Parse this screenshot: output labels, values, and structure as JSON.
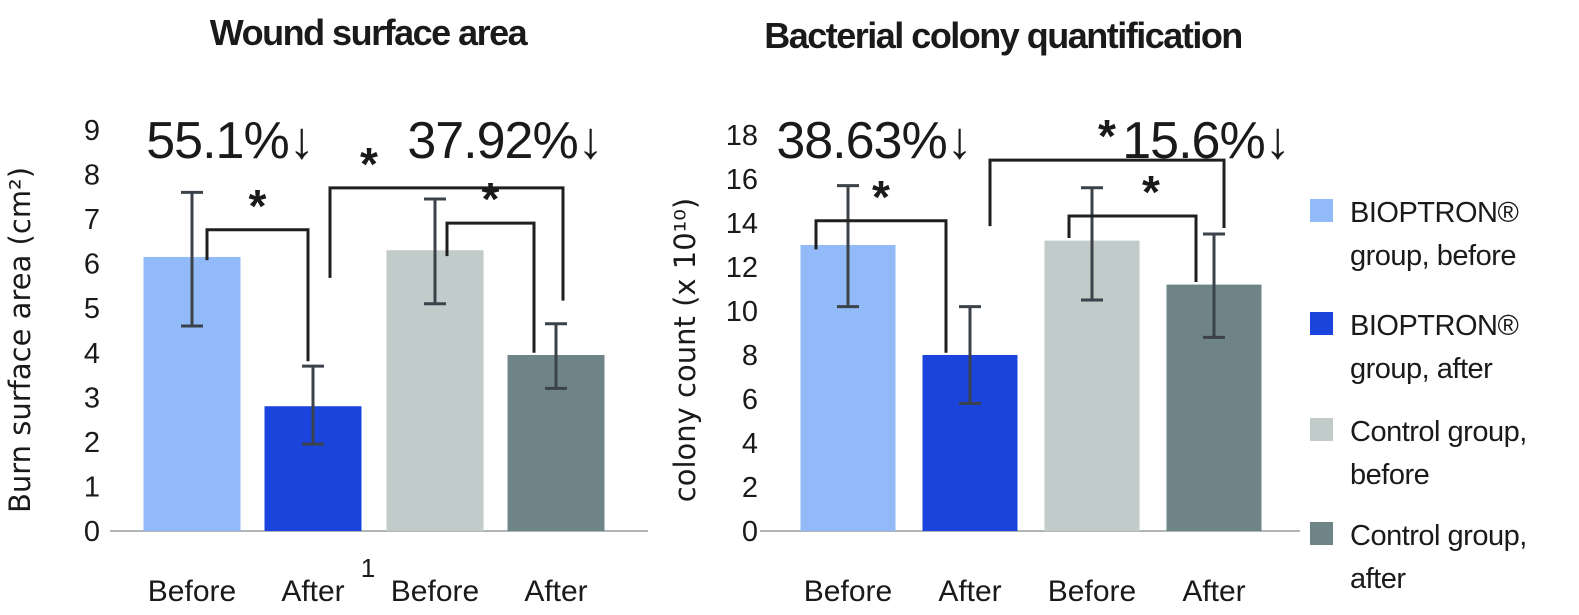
{
  "colors": {
    "bioptron_before": "#92b9f8",
    "bioptron_after": "#1b44dd",
    "control_before": "#c0cbca",
    "control_after": "#6f8487",
    "error_bar": "#3b424a",
    "bracket": "#1f1f1d",
    "axis_line": "#b0b5b5",
    "text": "#1a1a1a"
  },
  "legend": {
    "items": [
      {
        "lines": [
          "BIOPTRON®",
          "group, before"
        ],
        "color": "#92b9f8"
      },
      {
        "lines": [
          "BIOPTRON®",
          "group, after"
        ],
        "color": "#1b44dd"
      },
      {
        "lines": [
          "Control group,",
          "before"
        ],
        "color": "#c0cbca"
      },
      {
        "lines": [
          "Control group,",
          "after"
        ],
        "color": "#6f8487"
      }
    ]
  },
  "chart_data": [
    {
      "type": "bar",
      "title": "Wound surface area",
      "ylabel": "Burn surface area (cm²)",
      "xlabel": "",
      "ylim": [
        0,
        9
      ],
      "yticks": [
        0,
        1,
        2,
        3,
        4,
        5,
        6,
        7,
        8,
        9
      ],
      "grid": false,
      "categories": [
        "Before",
        "After",
        "Before",
        "After"
      ],
      "series": [
        {
          "name": "BIOPTRON® group, before",
          "value": 6.15,
          "err_low": 4.6,
          "err_high": 7.6,
          "color": "#92b9f8"
        },
        {
          "name": "BIOPTRON® group, after",
          "value": 2.8,
          "err_low": 1.95,
          "err_high": 3.7,
          "color": "#1b44dd"
        },
        {
          "name": "Control group, before",
          "value": 6.3,
          "err_low": 5.1,
          "err_high": 7.45,
          "color": "#c0cbca"
        },
        {
          "name": "Control group, after",
          "value": 3.95,
          "err_low": 3.2,
          "err_high": 4.65,
          "color": "#6f8487"
        }
      ],
      "percent_labels": [
        {
          "text": "55.1%↓",
          "x": 230
        },
        {
          "text": "37.92%↓",
          "x": 505
        }
      ],
      "sig_brackets": [
        {
          "from": 0,
          "to": 1,
          "dx1": 15,
          "dx2": -5,
          "top": 6.76,
          "drop_from": 6.08,
          "drop_to": 3.81,
          "star": "*",
          "star_frac": 0.5
        },
        {
          "from": 1,
          "to": 3,
          "dx1": 17,
          "dx2": 7,
          "top": 7.7,
          "drop_from": 5.68,
          "drop_to": 5.17,
          "star": "*",
          "star_frac": 0.167
        },
        {
          "from": 2,
          "to": 3,
          "dx1": 12,
          "dx2": -22,
          "top": 6.91,
          "drop_from": 6.17,
          "drop_to": 4.0,
          "star": "*",
          "star_frac": 0.5
        }
      ],
      "extra_labels": [
        {
          "text": "1",
          "x": 368,
          "y": 577
        }
      ]
    },
    {
      "type": "bar",
      "title": "Bacterial colony quantification",
      "ylabel": "colony count (x 10¹⁰)",
      "xlabel": "",
      "ylim": [
        0,
        18
      ],
      "yticks": [
        0,
        2,
        4,
        6,
        8,
        10,
        12,
        14,
        16,
        18
      ],
      "grid": false,
      "categories": [
        "Before",
        "After",
        "Before",
        "After"
      ],
      "series": [
        {
          "name": "BIOPTRON® group, before",
          "value": 13.0,
          "err_low": 10.2,
          "err_high": 15.7,
          "color": "#92b9f8"
        },
        {
          "name": "BIOPTRON® group, after",
          "value": 8.0,
          "err_low": 5.8,
          "err_high": 10.2,
          "color": "#1b44dd"
        },
        {
          "name": "Control group, before",
          "value": 13.2,
          "err_low": 10.5,
          "err_high": 15.6,
          "color": "#c0cbca"
        },
        {
          "name": "Control group, after",
          "value": 11.2,
          "err_low": 8.8,
          "err_high": 13.5,
          "color": "#6f8487"
        }
      ],
      "percent_labels": [
        {
          "text": "38.63%↓",
          "x": 214
        },
        {
          "text": "15.6%↓",
          "x": 546
        }
      ],
      "sig_brackets": [
        {
          "from": 0,
          "to": 1,
          "dx1": -32,
          "dx2": -24,
          "top": 14.1,
          "drop_from": 12.8,
          "drop_to": 8.1,
          "star": "*",
          "star_frac": 0.5
        },
        {
          "from": 1,
          "to": 3,
          "dx1": 20,
          "dx2": 10,
          "top": 16.86,
          "drop_from": 13.86,
          "drop_to": 13.77,
          "star": "*",
          "star_frac": 0.5
        },
        {
          "from": 2,
          "to": 3,
          "dx1": -23,
          "dx2": -18,
          "top": 14.32,
          "drop_from": 13.32,
          "drop_to": 11.32,
          "star": "*",
          "star_frac": 0.645
        }
      ],
      "extra_labels": []
    }
  ]
}
